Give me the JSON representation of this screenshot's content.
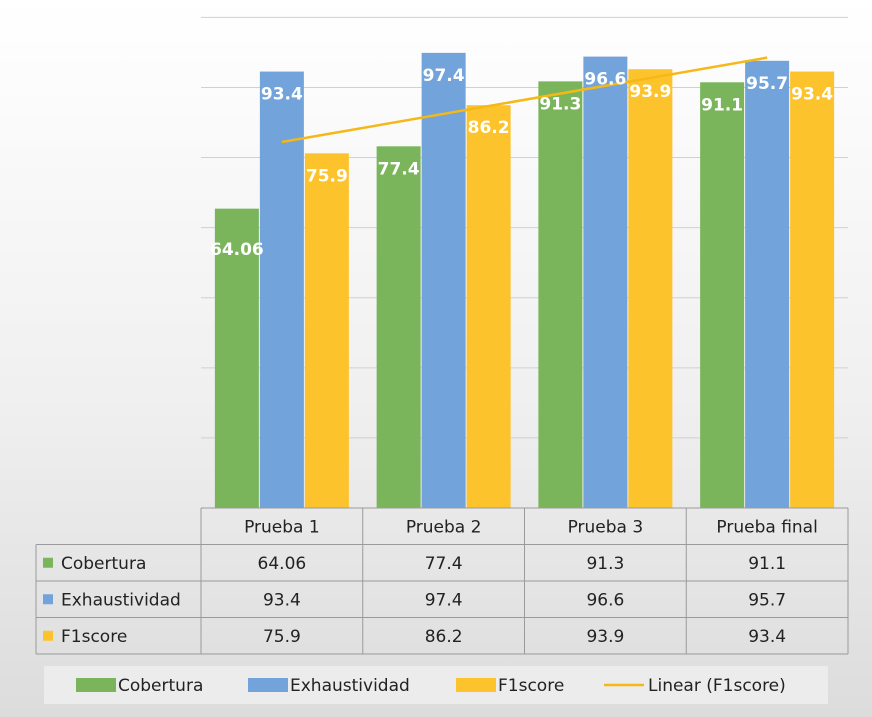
{
  "chart_data": {
    "type": "bar",
    "title": "",
    "xlabel": "",
    "ylabel": "",
    "ylim": [
      0,
      107
    ],
    "grid": true,
    "categories": [
      "Prueba 1",
      "Prueba 2",
      "Prueba 3",
      "Prueba final"
    ],
    "series": [
      {
        "name": "Cobertura",
        "color": "#7ab55c",
        "values": [
          64.06,
          77.4,
          91.3,
          91.1
        ],
        "labels": [
          "64.06",
          "77.4",
          "91.3",
          "91.1"
        ]
      },
      {
        "name": "Exhaustividad",
        "color": "#72a3da",
        "values": [
          93.4,
          97.4,
          96.6,
          95.7
        ],
        "labels": [
          "93.4",
          "97.4",
          "96.6",
          "95.7"
        ]
      },
      {
        "name": "F1score",
        "color": "#fdc32c",
        "values": [
          75.9,
          86.2,
          93.9,
          93.4
        ],
        "labels": [
          "75.9",
          "86.2",
          "93.9",
          "93.4"
        ]
      }
    ],
    "trendline": {
      "name": "Linear (F1score)",
      "series": "F1score",
      "type": "linear",
      "color": "#f5b816"
    },
    "data_table": true,
    "legend": {
      "position": "bottom",
      "entries": [
        "Cobertura",
        "Exhaustividad",
        "F1score",
        "Linear (F1score)"
      ]
    }
  }
}
